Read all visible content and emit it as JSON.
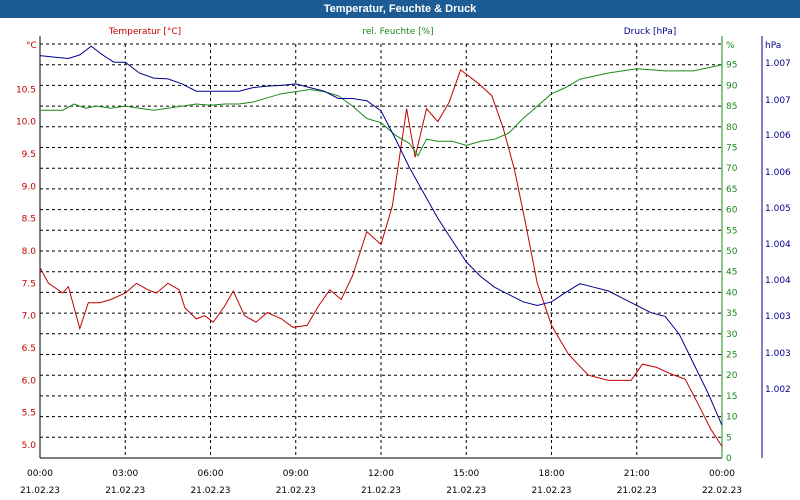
{
  "window": {
    "title": "Temperatur, Feuchte & Druck"
  },
  "colors": {
    "title_bar": "#1c5b94",
    "temperature": "#c00000",
    "humidity": "#1a8a1a",
    "pressure": "#00008b",
    "grid": "#000000"
  },
  "chart_data": {
    "type": "line",
    "title": "Temperatur, Feuchte & Druck",
    "grid": true,
    "x_ticks": [
      {
        "time": "00:00",
        "date": "21.02.23"
      },
      {
        "time": "03:00",
        "date": "21.02.23"
      },
      {
        "time": "06:00",
        "date": "21.02.23"
      },
      {
        "time": "09:00",
        "date": "21.02.23"
      },
      {
        "time": "12:00",
        "date": "21.02.23"
      },
      {
        "time": "15:00",
        "date": "21.02.23"
      },
      {
        "time": "18:00",
        "date": "21.02.23"
      },
      {
        "time": "21:00",
        "date": "21.02.23"
      },
      {
        "time": "00:00",
        "date": "22.02.23"
      }
    ],
    "xlim_hours": [
      0,
      24
    ],
    "axes": {
      "temperature": {
        "unit_label": "°C",
        "ylim": [
          4.8,
          11.2
        ],
        "ticks": [
          "10.5",
          "10.0",
          "9.5",
          "9.0",
          "8.5",
          "8.0",
          "7.5",
          "7.0",
          "6.5",
          "6.0",
          "5.5",
          "5.0"
        ]
      },
      "humidity": {
        "unit_label": "%",
        "ylim": [
          0,
          100
        ],
        "ticks": [
          "95",
          "90",
          "85",
          "80",
          "75",
          "70",
          "65",
          "60",
          "55",
          "50",
          "45",
          "40",
          "35",
          "30",
          "25",
          "20",
          "15",
          "10",
          "5",
          "0"
        ]
      },
      "pressure": {
        "unit_label": "hPa",
        "ylim": [
          1001.5,
          1007.2
        ],
        "ticks": [
          "1.007",
          "1.007",
          "1.006",
          "1.006",
          "1.005",
          "1.004",
          "1.004",
          "1.003",
          "1.003",
          "1.002"
        ]
      }
    },
    "series": [
      {
        "name": "Temperatur [°C]",
        "axis": "temperature",
        "points": [
          [
            0,
            7.74
          ],
          [
            0.3,
            7.5
          ],
          [
            0.8,
            7.35
          ],
          [
            1.0,
            7.45
          ],
          [
            1.4,
            6.8
          ],
          [
            1.7,
            7.2
          ],
          [
            2.1,
            7.2
          ],
          [
            2.5,
            7.25
          ],
          [
            3.0,
            7.35
          ],
          [
            3.4,
            7.5
          ],
          [
            3.8,
            7.4
          ],
          [
            4.1,
            7.35
          ],
          [
            4.5,
            7.5
          ],
          [
            4.9,
            7.4
          ],
          [
            5.1,
            7.12
          ],
          [
            5.5,
            6.95
          ],
          [
            5.8,
            7.0
          ],
          [
            6.1,
            6.9
          ],
          [
            6.5,
            7.15
          ],
          [
            6.8,
            7.38
          ],
          [
            7.2,
            7.0
          ],
          [
            7.6,
            6.9
          ],
          [
            8.0,
            7.05
          ],
          [
            8.5,
            6.95
          ],
          [
            8.9,
            6.82
          ],
          [
            9.4,
            6.85
          ],
          [
            9.8,
            7.15
          ],
          [
            10.2,
            7.4
          ],
          [
            10.6,
            7.25
          ],
          [
            11.0,
            7.62
          ],
          [
            11.5,
            8.3
          ],
          [
            12.0,
            8.1
          ],
          [
            12.4,
            8.7
          ],
          [
            12.9,
            10.2
          ],
          [
            13.2,
            9.45
          ],
          [
            13.6,
            10.2
          ],
          [
            14.0,
            10.0
          ],
          [
            14.4,
            10.3
          ],
          [
            14.8,
            10.8
          ],
          [
            15.4,
            10.6
          ],
          [
            15.9,
            10.4
          ],
          [
            16.3,
            9.9
          ],
          [
            16.7,
            9.25
          ],
          [
            17.1,
            8.4
          ],
          [
            17.5,
            7.5
          ],
          [
            18.0,
            6.85
          ],
          [
            18.6,
            6.4
          ],
          [
            19.3,
            6.08
          ],
          [
            20.0,
            6.0
          ],
          [
            20.8,
            6.0
          ],
          [
            21.2,
            6.25
          ],
          [
            21.7,
            6.2
          ],
          [
            22.2,
            6.1
          ],
          [
            22.7,
            6.02
          ],
          [
            23.2,
            5.6
          ],
          [
            23.6,
            5.25
          ],
          [
            24.0,
            4.98
          ]
        ]
      },
      {
        "name": "rel. Feuchte [%]",
        "axis": "humidity",
        "points": [
          [
            0,
            84
          ],
          [
            0.8,
            84
          ],
          [
            1.2,
            85.5
          ],
          [
            1.6,
            84.5
          ],
          [
            2.0,
            85
          ],
          [
            2.5,
            84.5
          ],
          [
            3.0,
            85
          ],
          [
            3.5,
            84.5
          ],
          [
            4.0,
            84
          ],
          [
            4.5,
            84.5
          ],
          [
            5.0,
            85
          ],
          [
            5.5,
            85.5
          ],
          [
            6.0,
            85.2
          ],
          [
            6.5,
            85.5
          ],
          [
            7.0,
            85.5
          ],
          [
            7.5,
            86
          ],
          [
            8.0,
            87
          ],
          [
            8.5,
            88
          ],
          [
            9.0,
            88.5
          ],
          [
            9.5,
            89
          ],
          [
            10.0,
            88.5
          ],
          [
            10.5,
            87.5
          ],
          [
            11.0,
            85
          ],
          [
            11.5,
            82
          ],
          [
            12.0,
            81
          ],
          [
            12.5,
            78
          ],
          [
            13.0,
            76
          ],
          [
            13.3,
            73
          ],
          [
            13.6,
            77
          ],
          [
            14.0,
            76.5
          ],
          [
            14.5,
            76.5
          ],
          [
            15.0,
            75.5
          ],
          [
            15.5,
            76.5
          ],
          [
            16.0,
            77
          ],
          [
            16.5,
            78.5
          ],
          [
            17.0,
            82
          ],
          [
            17.5,
            85
          ],
          [
            18.0,
            88
          ],
          [
            18.5,
            89.5
          ],
          [
            19.0,
            91.5
          ],
          [
            20.0,
            93
          ],
          [
            21.0,
            94
          ],
          [
            22.0,
            93.5
          ],
          [
            23.0,
            93.5
          ],
          [
            24.0,
            95
          ]
        ]
      },
      {
        "name": "Druck [hPa]",
        "axis": "pressure",
        "points": [
          [
            0,
            1007.04
          ],
          [
            0.5,
            1007.02
          ],
          [
            1.0,
            1007.0
          ],
          [
            1.4,
            1007.05
          ],
          [
            1.8,
            1007.17
          ],
          [
            2.2,
            1007.05
          ],
          [
            2.6,
            1006.95
          ],
          [
            3.0,
            1006.95
          ],
          [
            3.5,
            1006.8
          ],
          [
            4.0,
            1006.73
          ],
          [
            4.5,
            1006.72
          ],
          [
            5.0,
            1006.65
          ],
          [
            5.5,
            1006.55
          ],
          [
            6.0,
            1006.55
          ],
          [
            6.5,
            1006.55
          ],
          [
            7.0,
            1006.55
          ],
          [
            7.5,
            1006.6
          ],
          [
            8.0,
            1006.62
          ],
          [
            8.5,
            1006.63
          ],
          [
            9.0,
            1006.65
          ],
          [
            9.5,
            1006.6
          ],
          [
            10.0,
            1006.55
          ],
          [
            10.5,
            1006.45
          ],
          [
            11.0,
            1006.45
          ],
          [
            11.5,
            1006.42
          ],
          [
            12.0,
            1006.28
          ],
          [
            12.5,
            1005.9
          ],
          [
            13.0,
            1005.5
          ],
          [
            13.5,
            1005.15
          ],
          [
            14.0,
            1004.8
          ],
          [
            14.5,
            1004.5
          ],
          [
            15.0,
            1004.2
          ],
          [
            15.5,
            1004.0
          ],
          [
            16.0,
            1003.85
          ],
          [
            16.5,
            1003.75
          ],
          [
            17.0,
            1003.65
          ],
          [
            17.5,
            1003.6
          ],
          [
            18.0,
            1003.65
          ],
          [
            18.5,
            1003.78
          ],
          [
            19.0,
            1003.9
          ],
          [
            19.5,
            1003.85
          ],
          [
            20.0,
            1003.8
          ],
          [
            20.5,
            1003.7
          ],
          [
            21.0,
            1003.6
          ],
          [
            21.5,
            1003.5
          ],
          [
            22.0,
            1003.45
          ],
          [
            22.5,
            1003.2
          ],
          [
            23.0,
            1002.8
          ],
          [
            23.5,
            1002.4
          ],
          [
            24.0,
            1001.95
          ]
        ]
      }
    ]
  }
}
